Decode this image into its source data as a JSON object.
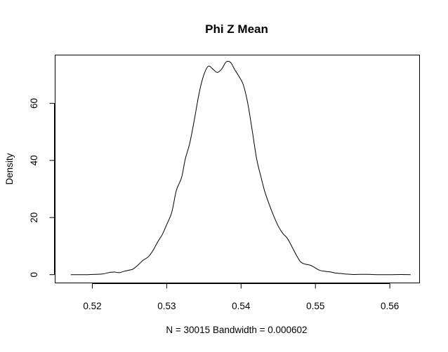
{
  "chart_data": {
    "type": "line",
    "title": "Phi Z Mean",
    "xlabel": "N = 30015   Bandwidth = 0.000602",
    "ylabel": "Density",
    "xlim": [
      0.515,
      0.564
    ],
    "ylim": [
      -2.9,
      76.9
    ],
    "xticks": [
      0.52,
      0.53,
      0.54,
      0.55,
      0.56
    ],
    "xtick_labels": [
      "0.52",
      "0.53",
      "0.54",
      "0.55",
      "0.56"
    ],
    "yticks": [
      0,
      20,
      40,
      60
    ],
    "ytick_labels": [
      "0",
      "20",
      "40",
      "60"
    ],
    "grid": false,
    "legend": "none",
    "line_color": "#000000",
    "series": [
      {
        "x": [
          0.5171,
          0.519,
          0.5205,
          0.5215,
          0.5224,
          0.523,
          0.5236,
          0.5243,
          0.525,
          0.5255,
          0.5262,
          0.5268,
          0.5275,
          0.5281,
          0.5288,
          0.5294,
          0.53,
          0.5307,
          0.5313,
          0.532,
          0.5325,
          0.5331,
          0.5337,
          0.5344,
          0.535,
          0.5356,
          0.5362,
          0.5368,
          0.5374,
          0.538,
          0.5386,
          0.5391,
          0.5397,
          0.5403,
          0.5409,
          0.5415,
          0.5421,
          0.5427,
          0.5432,
          0.5438,
          0.5444,
          0.545,
          0.5456,
          0.5462,
          0.5468,
          0.5474,
          0.548,
          0.5486,
          0.5493,
          0.5499,
          0.5505,
          0.5512,
          0.5519,
          0.5526,
          0.5534,
          0.5542,
          0.555,
          0.556,
          0.557,
          0.5585,
          0.56,
          0.5615,
          0.5628
        ],
        "y": [
          0.0,
          0.0,
          0.1,
          0.3,
          0.8,
          0.9,
          0.7,
          1.2,
          1.6,
          2.0,
          3.5,
          5.0,
          6.2,
          8.2,
          11.5,
          14.0,
          17.5,
          22.0,
          29.5,
          34.0,
          40.5,
          46.0,
          54.0,
          64.0,
          70.0,
          73.0,
          72.0,
          70.8,
          72.0,
          74.5,
          74.3,
          72.0,
          69.5,
          66.5,
          60.0,
          50.5,
          40.5,
          34.0,
          29.0,
          24.5,
          20.5,
          17.0,
          14.5,
          12.8,
          10.0,
          7.0,
          4.5,
          3.7,
          3.3,
          2.5,
          1.6,
          1.2,
          1.0,
          0.6,
          0.4,
          0.2,
          0.05,
          0.1,
          0.1,
          0.0,
          0.0,
          0.05,
          0.0
        ]
      }
    ]
  }
}
